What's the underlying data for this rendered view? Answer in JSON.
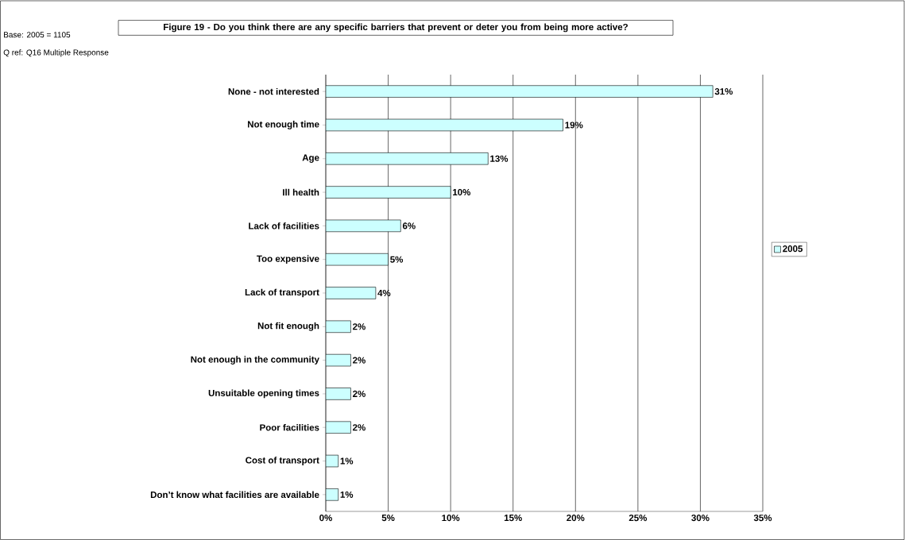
{
  "chart_data": {
    "type": "bar",
    "orientation": "horizontal",
    "title": "Figure 19 - Do you think there are any specific barriers that prevent or deter you from being more active?",
    "categories": [
      "None - not interested",
      "Not enough time",
      "Age",
      "Ill health",
      "Lack of facilities",
      "Too expensive",
      "Lack of transport",
      "Not fit enough",
      "Not enough in the community",
      "Unsuitable opening times",
      "Poor facilities",
      "Cost of transport",
      "Don’t know what facilities are available"
    ],
    "series": [
      {
        "name": "2005",
        "color": "#ccffff",
        "values": [
          31,
          19,
          13,
          10,
          6,
          5,
          4,
          2,
          2,
          2,
          2,
          1,
          1
        ]
      }
    ],
    "value_labels": [
      "31%",
      "19%",
      "13%",
      "10%",
      "6%",
      "5%",
      "4%",
      "2%",
      "2%",
      "2%",
      "2%",
      "1%",
      "1%"
    ],
    "xlim": [
      0,
      35
    ],
    "xticks": [
      {
        "value": 0,
        "label": "0%"
      },
      {
        "value": 5,
        "label": "5%"
      },
      {
        "value": 10,
        "label": "10%"
      },
      {
        "value": 15,
        "label": "15%"
      },
      {
        "value": 20,
        "label": "20%"
      },
      {
        "value": 25,
        "label": "25%"
      },
      {
        "value": 30,
        "label": "30%"
      },
      {
        "value": 35,
        "label": "35%"
      }
    ],
    "grid": "x",
    "legend": "right",
    "annotations": [
      "Base: 2005 = 1105",
      "Q ref: Q16    Multiple Response"
    ]
  }
}
